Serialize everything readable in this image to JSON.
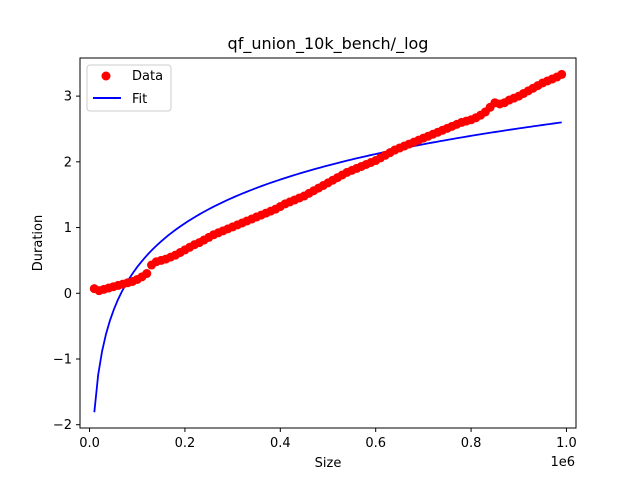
{
  "chart_data": {
    "type": "scatter",
    "title": "qf_union_10k_bench/_log",
    "xlabel": "Size",
    "ylabel": "Duration",
    "x_offset_label": "1e6",
    "xlim": [
      -20000,
      1020000
    ],
    "ylim": [
      -2.05,
      3.58
    ],
    "x_ticks": [
      0,
      200000,
      400000,
      600000,
      800000,
      1000000
    ],
    "x_tick_labels": [
      "0.0",
      "0.2",
      "0.4",
      "0.6",
      "0.8",
      "1.0"
    ],
    "y_ticks": [
      -2,
      -1,
      0,
      1,
      2,
      3
    ],
    "y_tick_labels": [
      "−2",
      "−1",
      "0",
      "1",
      "2",
      "3"
    ],
    "legend_position": "top-left",
    "colors": {
      "data": "#ff0000",
      "fit": "#0000ff"
    },
    "series": [
      {
        "name": "Data",
        "kind": "scatter",
        "points": [
          [
            10000,
            0.07
          ],
          [
            20000,
            0.04
          ],
          [
            30000,
            0.06
          ],
          [
            40000,
            0.08
          ],
          [
            50000,
            0.1
          ],
          [
            60000,
            0.12
          ],
          [
            70000,
            0.14
          ],
          [
            80000,
            0.16
          ],
          [
            90000,
            0.18
          ],
          [
            100000,
            0.21
          ],
          [
            110000,
            0.25
          ],
          [
            120000,
            0.3
          ],
          [
            130000,
            0.43
          ],
          [
            140000,
            0.48
          ],
          [
            150000,
            0.5
          ],
          [
            160000,
            0.52
          ],
          [
            170000,
            0.55
          ],
          [
            180000,
            0.58
          ],
          [
            190000,
            0.62
          ],
          [
            200000,
            0.66
          ],
          [
            210000,
            0.7
          ],
          [
            220000,
            0.74
          ],
          [
            230000,
            0.77
          ],
          [
            240000,
            0.81
          ],
          [
            250000,
            0.85
          ],
          [
            260000,
            0.89
          ],
          [
            270000,
            0.92
          ],
          [
            280000,
            0.95
          ],
          [
            290000,
            0.98
          ],
          [
            300000,
            1.01
          ],
          [
            310000,
            1.04
          ],
          [
            320000,
            1.07
          ],
          [
            330000,
            1.1
          ],
          [
            340000,
            1.13
          ],
          [
            350000,
            1.16
          ],
          [
            360000,
            1.19
          ],
          [
            370000,
            1.22
          ],
          [
            380000,
            1.25
          ],
          [
            390000,
            1.28
          ],
          [
            400000,
            1.32
          ],
          [
            410000,
            1.36
          ],
          [
            420000,
            1.39
          ],
          [
            430000,
            1.42
          ],
          [
            440000,
            1.45
          ],
          [
            450000,
            1.48
          ],
          [
            460000,
            1.52
          ],
          [
            470000,
            1.56
          ],
          [
            480000,
            1.6
          ],
          [
            490000,
            1.64
          ],
          [
            500000,
            1.68
          ],
          [
            510000,
            1.72
          ],
          [
            520000,
            1.76
          ],
          [
            530000,
            1.8
          ],
          [
            540000,
            1.84
          ],
          [
            550000,
            1.87
          ],
          [
            560000,
            1.9
          ],
          [
            570000,
            1.93
          ],
          [
            580000,
            1.96
          ],
          [
            590000,
            1.99
          ],
          [
            600000,
            2.02
          ],
          [
            610000,
            2.06
          ],
          [
            620000,
            2.1
          ],
          [
            630000,
            2.14
          ],
          [
            640000,
            2.18
          ],
          [
            650000,
            2.21
          ],
          [
            660000,
            2.24
          ],
          [
            670000,
            2.27
          ],
          [
            680000,
            2.3
          ],
          [
            690000,
            2.33
          ],
          [
            700000,
            2.36
          ],
          [
            710000,
            2.39
          ],
          [
            720000,
            2.42
          ],
          [
            730000,
            2.45
          ],
          [
            740000,
            2.48
          ],
          [
            750000,
            2.51
          ],
          [
            760000,
            2.54
          ],
          [
            770000,
            2.57
          ],
          [
            780000,
            2.6
          ],
          [
            790000,
            2.62
          ],
          [
            800000,
            2.64
          ],
          [
            810000,
            2.67
          ],
          [
            820000,
            2.71
          ],
          [
            830000,
            2.76
          ],
          [
            840000,
            2.83
          ],
          [
            850000,
            2.9
          ],
          [
            860000,
            2.88
          ],
          [
            870000,
            2.9
          ],
          [
            880000,
            2.94
          ],
          [
            890000,
            2.97
          ],
          [
            900000,
            3.0
          ],
          [
            910000,
            3.04
          ],
          [
            920000,
            3.08
          ],
          [
            930000,
            3.12
          ],
          [
            940000,
            3.16
          ],
          [
            950000,
            3.2
          ],
          [
            960000,
            3.23
          ],
          [
            970000,
            3.26
          ],
          [
            980000,
            3.29
          ],
          [
            990000,
            3.33
          ]
        ]
      },
      {
        "name": "Fit",
        "kind": "line",
        "model": {
          "a": 0.9597,
          "b": 6.888
        },
        "x_start": 10000,
        "x_end": 990000
      }
    ]
  }
}
